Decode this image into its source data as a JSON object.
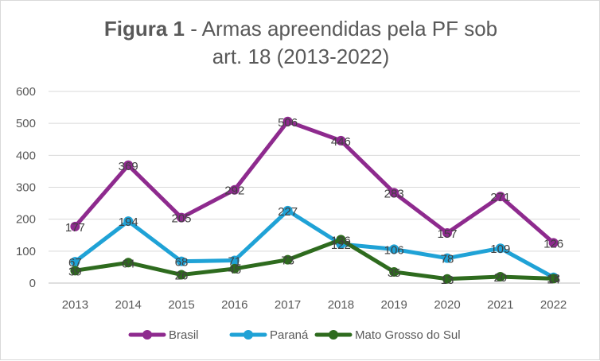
{
  "title": {
    "bold": "Figura 1",
    "rest_line1": " - Armas apreendidas pela PF sob",
    "line2": "art. 18 (2013-2022)"
  },
  "chart_data": {
    "type": "line",
    "title": "Figura 1 - Armas apreendidas pela PF sob art. 18 (2013-2022)",
    "xlabel": "",
    "ylabel": "",
    "categories": [
      "2013",
      "2014",
      "2015",
      "2016",
      "2017",
      "2018",
      "2019",
      "2020",
      "2021",
      "2022"
    ],
    "ylim": [
      0,
      600
    ],
    "yticks": [
      0,
      100,
      200,
      300,
      400,
      500,
      600
    ],
    "grid": true,
    "legend_position": "bottom",
    "series": [
      {
        "name": "Brasil",
        "color": "#8e2a8e",
        "values": [
          177,
          369,
          205,
          292,
          506,
          446,
          283,
          157,
          271,
          126
        ]
      },
      {
        "name": "Paraná",
        "color": "#1fa2d6",
        "values": [
          67,
          194,
          68,
          71,
          227,
          122,
          106,
          78,
          109,
          18
        ]
      },
      {
        "name": "Mato Grosso do Sul",
        "color": "#2e6b1e",
        "values": [
          39,
          64,
          26,
          45,
          73,
          136,
          35,
          13,
          20,
          14
        ]
      }
    ]
  }
}
